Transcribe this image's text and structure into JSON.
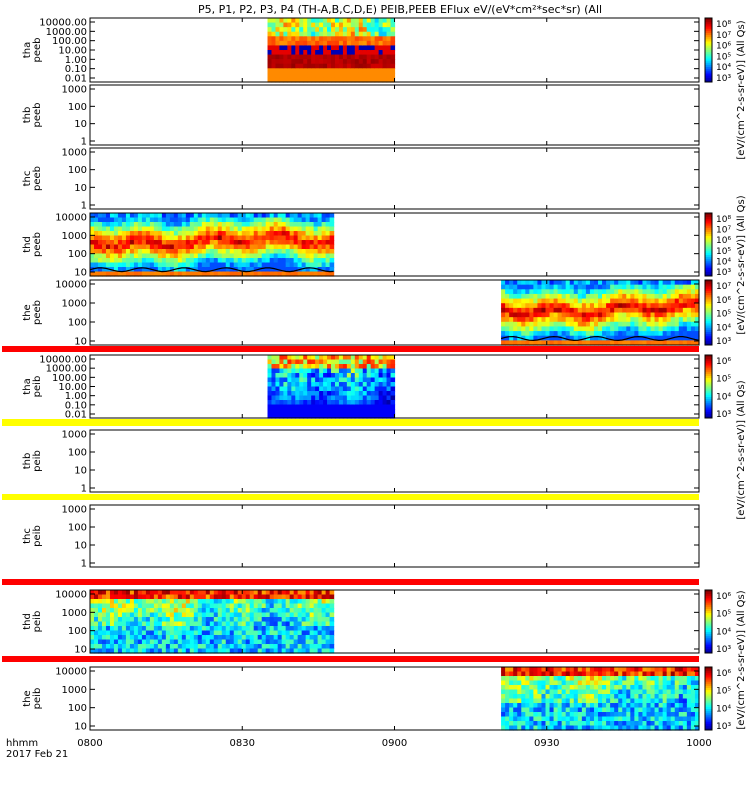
{
  "chart_data": {
    "type": "heatmap",
    "title": "P5, P1, P2, P3, P4 (TH-A,B,C,D,E) PEIB,PEEB EFlux eV/(eV*cm²*sec*sr) (All",
    "time_axis": {
      "ticks": [
        "0800",
        "0830",
        "0900",
        "0930",
        "1000"
      ],
      "hours": [
        8.0,
        8.5,
        9.0,
        9.5,
        10.0
      ],
      "range": [
        8.0,
        10.0
      ],
      "unit_label": "hhmm",
      "date_label": "2017 Feb 21"
    },
    "colorbar_label": "[eV/(cm^2-s-sr-eV)] (All Qs)",
    "panels": [
      {
        "id": "tha-peeb",
        "ylabel": [
          "tha",
          "peeb"
        ],
        "yticks": [
          "10000.00",
          "1000.00",
          "100.00",
          "10.00",
          "1.00",
          "0.10",
          "0.01"
        ],
        "data_start": 8.583,
        "data_end": 9.0,
        "kind": "electron-burst-a",
        "cbar": [
          "10⁸",
          "10⁷",
          "10⁶",
          "10⁵",
          "10⁴",
          "10³"
        ],
        "cbar_title": "[eV/(cm²-s-sr-eV)] (All"
      },
      {
        "id": "thb-peeb",
        "ylabel": [
          "thb",
          "peeb"
        ],
        "yticks": [
          "1000",
          "100",
          "10",
          "1"
        ],
        "data_start": null,
        "data_end": null,
        "kind": "empty"
      },
      {
        "id": "thc-peeb",
        "ylabel": [
          "thc",
          "peeb"
        ],
        "yticks": [
          "1000",
          "100",
          "10",
          "1"
        ],
        "data_start": null,
        "data_end": null,
        "kind": "empty"
      },
      {
        "id": "thd-peeb",
        "ylabel": [
          "thd",
          "peeb"
        ],
        "yticks": [
          "10000",
          "1000",
          "100",
          "10"
        ],
        "data_start": 8.0,
        "data_end": 8.8,
        "kind": "electron",
        "cbar": [
          "10⁸",
          "10⁷",
          "10⁶",
          "10⁵",
          "10⁴",
          "10³"
        ]
      },
      {
        "id": "the-peeb",
        "ylabel": [
          "the",
          "peeb"
        ],
        "yticks": [
          "10000",
          "1000",
          "100",
          "10"
        ],
        "data_start": 9.35,
        "data_end": 10.0,
        "kind": "electron",
        "cbar": [
          "10⁷",
          "10⁶",
          "10⁵",
          "10⁴",
          "10³"
        ]
      },
      {
        "id": "tha-peib",
        "ylabel": [
          "tha",
          "peib"
        ],
        "yticks": [
          "10000.00",
          "1000.00",
          "100.00",
          "10.00",
          "1.00",
          "0.10",
          "0.01"
        ],
        "data_start": 8.583,
        "data_end": 9.0,
        "kind": "ion-burst",
        "cbar": [
          "10⁶",
          "10⁵",
          "10⁴",
          "10³"
        ]
      },
      {
        "id": "thb-peib",
        "ylabel": [
          "thb",
          "peib"
        ],
        "yticks": [
          "1000",
          "100",
          "10",
          "1"
        ],
        "data_start": null,
        "data_end": null,
        "kind": "empty"
      },
      {
        "id": "thc-peib",
        "ylabel": [
          "thc",
          "peib"
        ],
        "yticks": [
          "1000",
          "100",
          "10",
          "1"
        ],
        "data_start": null,
        "data_end": null,
        "kind": "empty"
      },
      {
        "id": "thd-peib",
        "ylabel": [
          "thd",
          "peib"
        ],
        "yticks": [
          "10000",
          "1000",
          "100",
          "10"
        ],
        "data_start": 8.0,
        "data_end": 8.8,
        "kind": "ion",
        "cbar": [
          "10⁶",
          "10⁵",
          "10⁴",
          "10³"
        ]
      },
      {
        "id": "the-peib",
        "ylabel": [
          "the",
          "peib"
        ],
        "yticks": [
          "10000",
          "1000",
          "100",
          "10"
        ],
        "data_start": 9.35,
        "data_end": 10.0,
        "kind": "ion",
        "cbar": [
          "10⁶",
          "10⁵",
          "10⁴",
          "10³"
        ]
      }
    ],
    "flag_bars": [
      {
        "after_panel": "the-peeb",
        "color": "#ff0000"
      },
      {
        "after_panel": "tha-peib",
        "color": "#ffff00"
      },
      {
        "after_panel": "thb-peib",
        "color": "#ffff00"
      },
      {
        "after_panel": "thc-peib",
        "color": "#ff0000"
      },
      {
        "after_panel": "thd-peib",
        "color": "#ff0000"
      }
    ],
    "side_labels": [
      "[eV/(cm^2-s-sr-eV)] (All Qs)",
      "[eV/(cm^2-s-sr-eV)] (All Qs)",
      "[eV/(cm^2-s-sr-eV)] (All Qs)",
      "[eV/(cm^2-s-sr-eV)] (All Qs)"
    ]
  }
}
